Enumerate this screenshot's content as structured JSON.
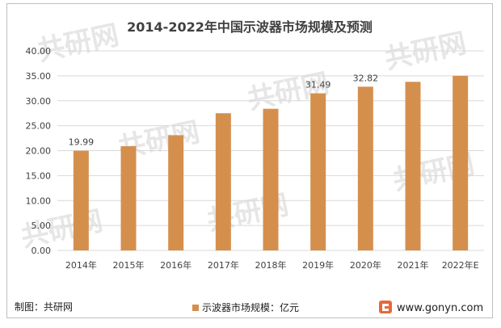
{
  "chart_data": {
    "type": "bar",
    "title": "2014-2022年中国示波器市场规模及预测",
    "categories": [
      "2014年",
      "2015年",
      "2016年",
      "2017年",
      "2018年",
      "2019年",
      "2020年",
      "2021年",
      "2022年E"
    ],
    "series": [
      {
        "name": "示波器市场规模：亿元",
        "values": [
          19.99,
          20.9,
          23.1,
          27.5,
          28.4,
          31.49,
          32.82,
          33.8,
          35.0
        ]
      }
    ],
    "data_labels": [
      "19.99",
      "",
      "",
      "",
      "",
      "31.49",
      "32.82",
      "",
      ""
    ],
    "ylim": [
      0,
      40
    ],
    "yticks": [
      "0.00",
      "5.00",
      "10.00",
      "15.00",
      "20.00",
      "25.00",
      "30.00",
      "35.00",
      "40.00"
    ],
    "ytick_values": [
      0,
      5,
      10,
      15,
      20,
      25,
      30,
      35,
      40
    ],
    "grid": true,
    "legend_position": "bottom-center",
    "colors": {
      "bar": "#d58f4d",
      "grid": "#d9d9d9",
      "text": "#404040",
      "logo": "#e8683a"
    }
  },
  "footer": {
    "source": "制图：共研网",
    "url": "www.gonyn.com"
  },
  "watermark": {
    "text": "共研网",
    "sub": "www.gonyn.com"
  }
}
